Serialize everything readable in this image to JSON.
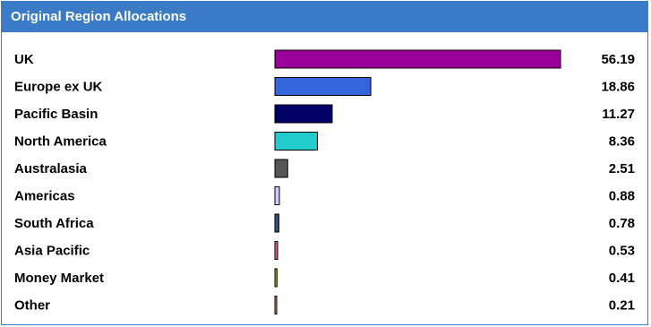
{
  "header": {
    "title": "Original Region Allocations"
  },
  "chart_data": {
    "type": "bar",
    "orientation": "horizontal",
    "categories": [
      "UK",
      "Europe ex UK",
      "Pacific Basin",
      "North America",
      "Australasia",
      "Americas",
      "South Africa",
      "Asia Pacific",
      "Money Market",
      "Other"
    ],
    "values": [
      56.19,
      18.86,
      11.27,
      8.36,
      2.51,
      0.88,
      0.78,
      0.53,
      0.41,
      0.21
    ],
    "value_labels": [
      "56.19",
      "18.86",
      "11.27",
      "8.36",
      "2.51",
      "0.88",
      "0.78",
      "0.53",
      "0.41",
      "0.21"
    ],
    "colors": [
      "#990099",
      "#3366dd",
      "#000066",
      "#22cccc",
      "#555555",
      "#ccccff",
      "#335577",
      "#dd6677",
      "#99aa33",
      "#dd8866"
    ],
    "xlim": [
      0,
      56.19
    ],
    "grid": false,
    "legend": "none"
  }
}
